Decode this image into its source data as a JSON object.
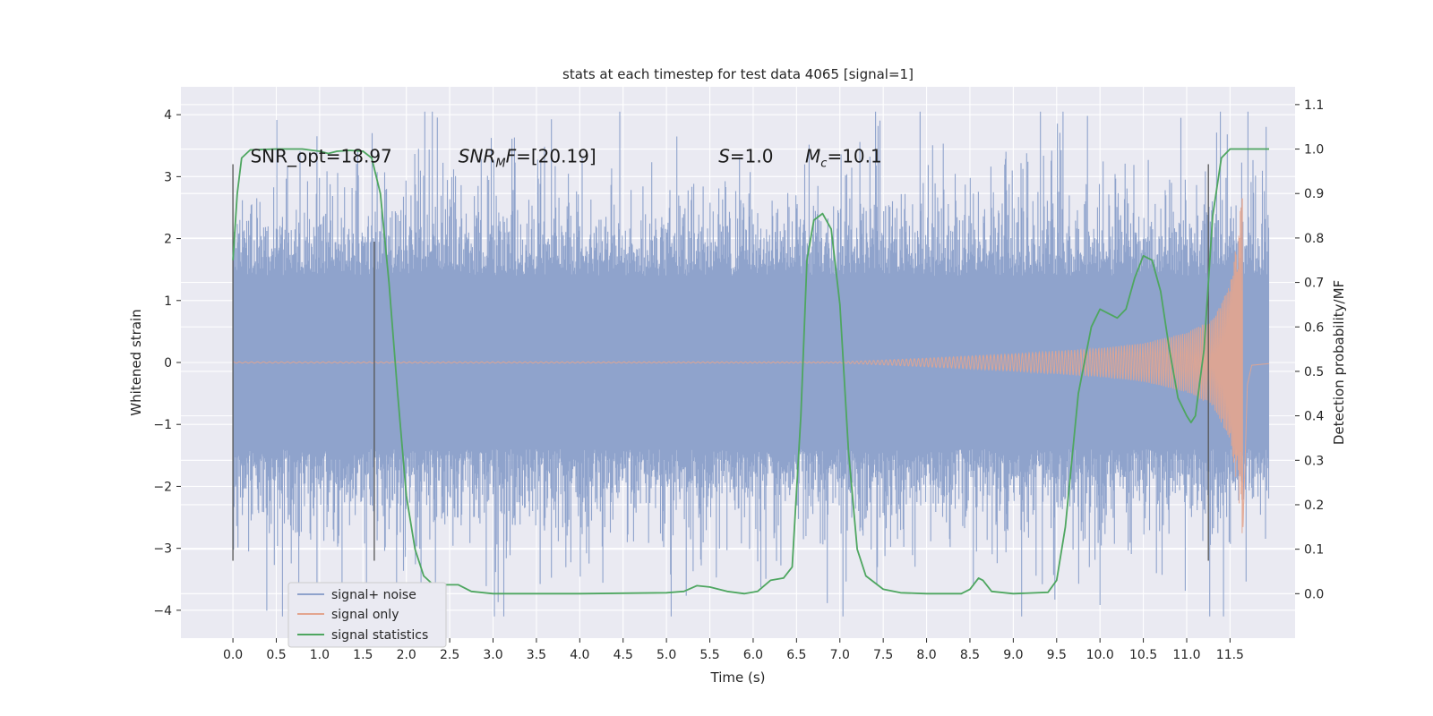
{
  "chart_data": {
    "type": "line",
    "title": "stats at each timestep for test data 4065 [signal=1]",
    "xlabel": "Time (s)",
    "ylabel_left": "Whitened strain",
    "ylabel_right": "Detection probability/MF",
    "xlim": [
      -0.6,
      12.25
    ],
    "ylim_left": [
      -4.45,
      4.45
    ],
    "ylim_right": [
      -0.1,
      1.14
    ],
    "x_ticks": [
      "0.0",
      "0.5",
      "1.0",
      "1.5",
      "2.0",
      "2.5",
      "3.0",
      "3.5",
      "4.0",
      "4.5",
      "5.0",
      "5.5",
      "6.0",
      "6.5",
      "7.0",
      "7.5",
      "8.0",
      "8.5",
      "9.0",
      "9.5",
      "10.0",
      "10.5",
      "11.0",
      "11.5"
    ],
    "y_ticks_left": [
      "4",
      "3",
      "2",
      "1",
      "0",
      "−1",
      "−2",
      "−3",
      "−4"
    ],
    "y_ticks_right": [
      "1.1",
      "1.0",
      "0.9",
      "0.8",
      "0.7",
      "0.6",
      "0.5",
      "0.4",
      "0.3",
      "0.2",
      "0.1",
      "0.0"
    ],
    "grid": true,
    "legend_position": "lower-left",
    "annotations": [
      {
        "text": "SNR_opt=18.97",
        "x": 0.2,
        "y": 3.2
      },
      {
        "text": "SNR",
        "sub": "M",
        "after": "F=[20.19]",
        "italic": true,
        "x": 2.6,
        "y": 3.2
      },
      {
        "text": "S",
        "after": "=1.0",
        "italic": true,
        "x": 5.6,
        "y": 3.2
      },
      {
        "text": "M",
        "sub": "c",
        "after": "=10.1",
        "italic": true,
        "x": 6.6,
        "y": 3.2
      }
    ],
    "vertical_markers": {
      "color": "#555555",
      "lines": [
        {
          "x": 0.0,
          "y": [
            -3.2,
            3.2
          ]
        },
        {
          "x": 1.63,
          "y": [
            -3.2,
            1.95
          ]
        },
        {
          "x": 11.25,
          "y": [
            -3.2,
            3.2
          ]
        }
      ]
    },
    "series": [
      {
        "name": "signal+ noise",
        "color": "#8fa3cc",
        "kind": "noise",
        "x_range": [
          0,
          11.95
        ],
        "dense_band": [
          -1.35,
          1.35
        ],
        "spike_extent": [
          -4.1,
          4.05
        ]
      },
      {
        "name": "signal only",
        "color": "#e3a58f",
        "kind": "chirp",
        "x_range": [
          0,
          11.95
        ],
        "merger_time": 11.65,
        "envelope": [
          [
            7.0,
            0.01
          ],
          [
            8.0,
            0.07
          ],
          [
            9.0,
            0.14
          ],
          [
            10.0,
            0.23
          ],
          [
            10.5,
            0.31
          ],
          [
            11.0,
            0.48
          ],
          [
            11.3,
            0.7
          ],
          [
            11.5,
            1.25
          ],
          [
            11.6,
            2.2
          ],
          [
            11.65,
            2.95
          ],
          [
            11.7,
            0.4
          ],
          [
            11.75,
            0.05
          ],
          [
            11.95,
            0.02
          ]
        ]
      },
      {
        "name": "signal statistics",
        "color": "#4ea660",
        "kind": "probability",
        "points": [
          [
            0.0,
            0.75
          ],
          [
            0.05,
            0.9
          ],
          [
            0.1,
            0.98
          ],
          [
            0.2,
            0.998
          ],
          [
            0.5,
            1.0
          ],
          [
            0.8,
            1.0
          ],
          [
            1.0,
            0.995
          ],
          [
            1.1,
            0.99
          ],
          [
            1.2,
            0.995
          ],
          [
            1.35,
            0.997
          ],
          [
            1.5,
            0.995
          ],
          [
            1.6,
            0.98
          ],
          [
            1.7,
            0.9
          ],
          [
            1.8,
            0.7
          ],
          [
            1.9,
            0.45
          ],
          [
            2.0,
            0.22
          ],
          [
            2.1,
            0.1
          ],
          [
            2.2,
            0.04
          ],
          [
            2.3,
            0.022
          ],
          [
            2.45,
            0.02
          ],
          [
            2.6,
            0.02
          ],
          [
            2.75,
            0.005
          ],
          [
            3.0,
            0.0
          ],
          [
            4.0,
            0.0
          ],
          [
            5.0,
            0.002
          ],
          [
            5.2,
            0.005
          ],
          [
            5.35,
            0.018
          ],
          [
            5.5,
            0.015
          ],
          [
            5.7,
            0.005
          ],
          [
            5.9,
            0.0
          ],
          [
            6.05,
            0.005
          ],
          [
            6.2,
            0.03
          ],
          [
            6.35,
            0.035
          ],
          [
            6.45,
            0.06
          ],
          [
            6.55,
            0.4
          ],
          [
            6.62,
            0.75
          ],
          [
            6.7,
            0.84
          ],
          [
            6.8,
            0.855
          ],
          [
            6.9,
            0.82
          ],
          [
            7.0,
            0.65
          ],
          [
            7.1,
            0.32
          ],
          [
            7.2,
            0.1
          ],
          [
            7.3,
            0.04
          ],
          [
            7.5,
            0.01
          ],
          [
            7.7,
            0.002
          ],
          [
            8.0,
            0.0
          ],
          [
            8.4,
            0.0
          ],
          [
            8.5,
            0.01
          ],
          [
            8.6,
            0.035
          ],
          [
            8.65,
            0.03
          ],
          [
            8.75,
            0.005
          ],
          [
            9.0,
            0.0
          ],
          [
            9.4,
            0.003
          ],
          [
            9.5,
            0.03
          ],
          [
            9.6,
            0.15
          ],
          [
            9.75,
            0.45
          ],
          [
            9.9,
            0.6
          ],
          [
            10.0,
            0.64
          ],
          [
            10.1,
            0.63
          ],
          [
            10.2,
            0.62
          ],
          [
            10.3,
            0.64
          ],
          [
            10.4,
            0.71
          ],
          [
            10.5,
            0.76
          ],
          [
            10.6,
            0.75
          ],
          [
            10.7,
            0.68
          ],
          [
            10.8,
            0.55
          ],
          [
            10.9,
            0.44
          ],
          [
            11.0,
            0.4
          ],
          [
            11.05,
            0.385
          ],
          [
            11.1,
            0.4
          ],
          [
            11.2,
            0.55
          ],
          [
            11.3,
            0.85
          ],
          [
            11.4,
            0.98
          ],
          [
            11.5,
            1.0
          ],
          [
            11.6,
            1.0
          ],
          [
            11.95,
            1.0
          ]
        ]
      }
    ]
  }
}
